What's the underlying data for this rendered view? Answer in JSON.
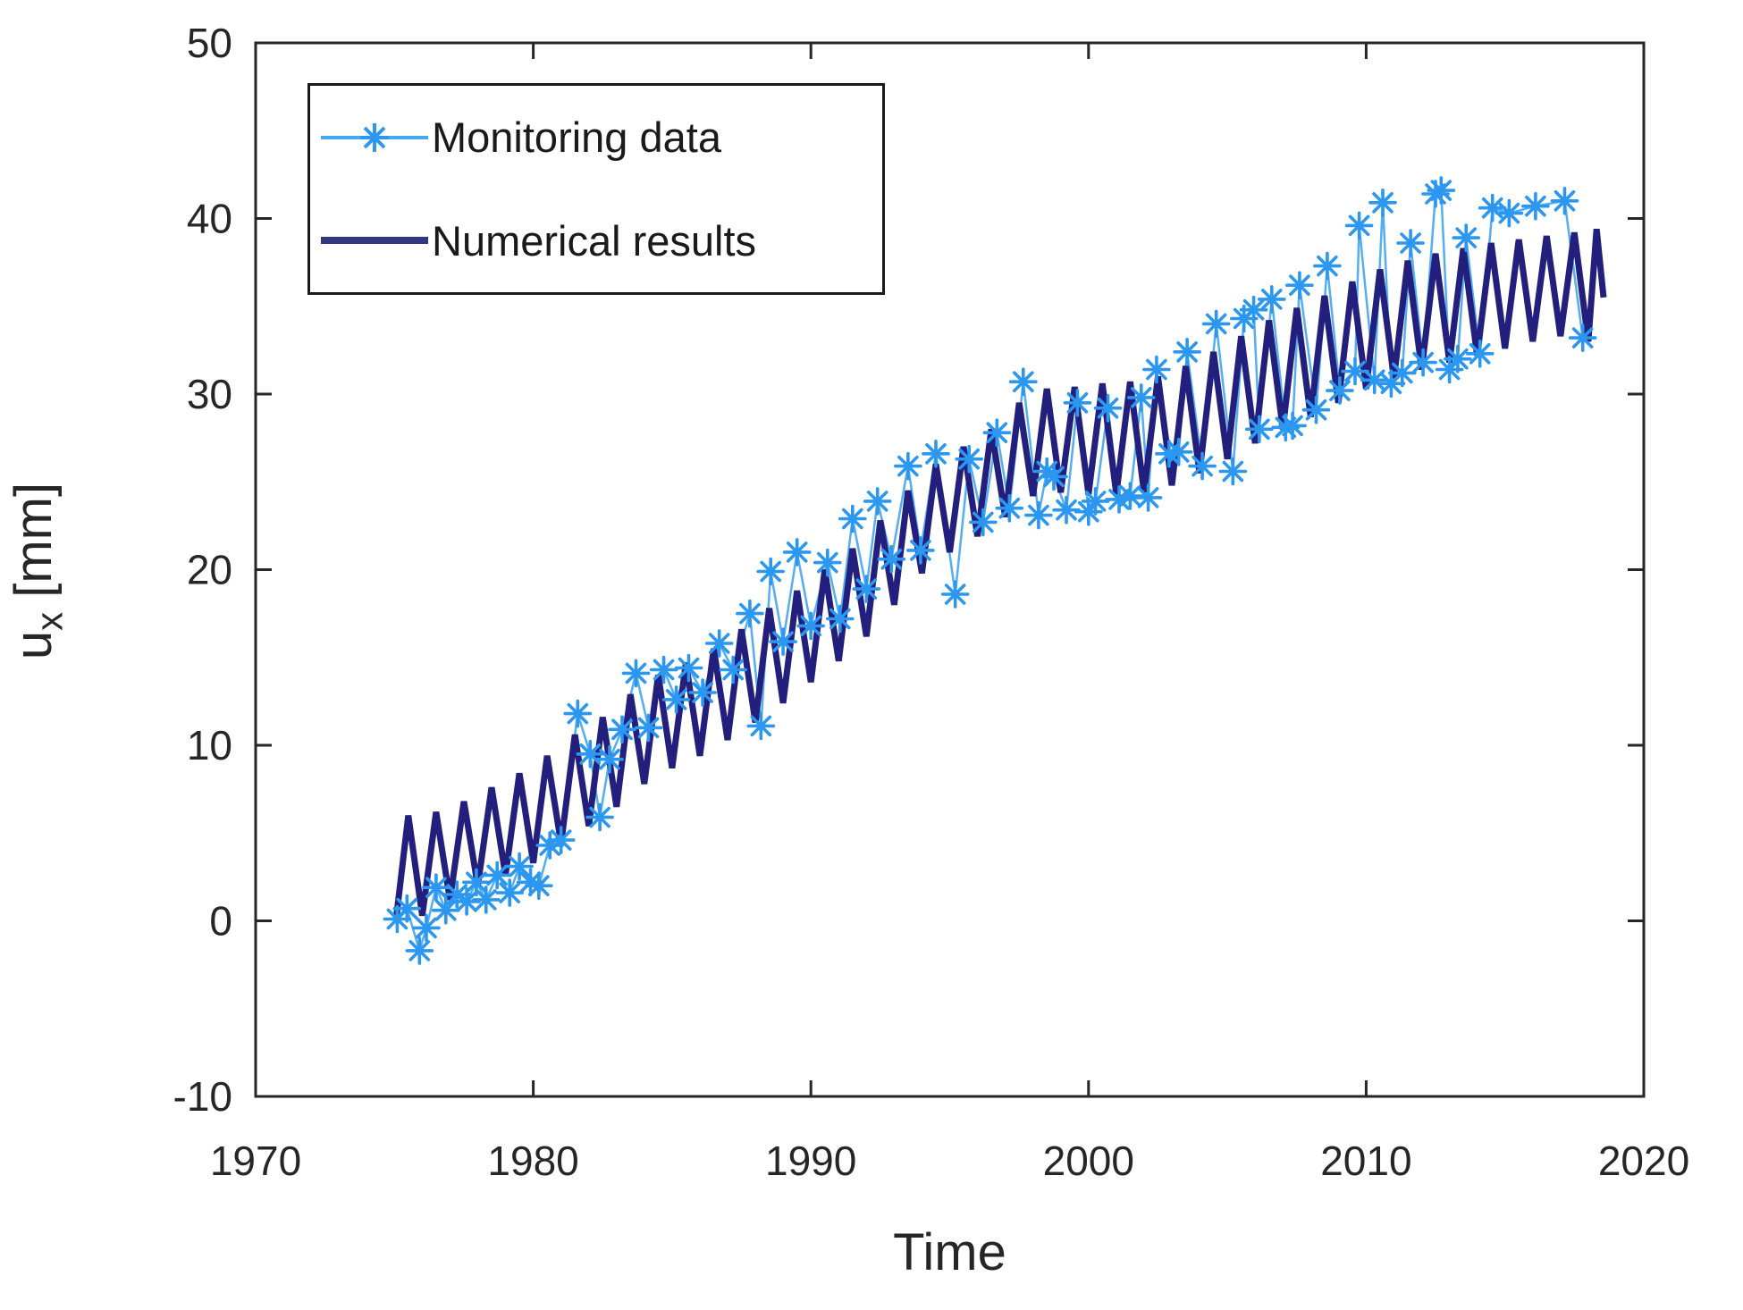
{
  "figure": {
    "background": "#ffffff",
    "axis_color": "#262626"
  },
  "axes": {
    "xlabel": "Time",
    "ylabel": {
      "base": "u",
      "sub": "x",
      "unit": " [mm]"
    },
    "x_ticks": [
      1970,
      1980,
      1990,
      2000,
      2010,
      2020
    ],
    "y_ticks": [
      -10,
      0,
      10,
      20,
      30,
      40,
      50
    ]
  },
  "legend": {
    "items": [
      {
        "label": "Monitoring data",
        "marker": "asterisk-line",
        "color": "#44a9f2"
      },
      {
        "label": "Numerical results",
        "marker": "line",
        "color": "#32357f"
      }
    ]
  },
  "chart_data": {
    "type": "line",
    "title": "",
    "xlabel": "Time",
    "ylabel": "u_x [mm]",
    "xlim": [
      1970,
      2020
    ],
    "ylim": [
      -10,
      50
    ],
    "grid": false,
    "legend_position": "top-left",
    "series": [
      {
        "name": "Monitoring data",
        "line_color": "#55aef2",
        "marker_color": "#2b97f0",
        "marker": "asterisk",
        "line_width": 2.5,
        "points": [
          [
            1975.1,
            0.1
          ],
          [
            1975.45,
            0.7
          ],
          [
            1975.9,
            -1.7
          ],
          [
            1976.15,
            -0.4
          ],
          [
            1976.5,
            1.9
          ],
          [
            1976.85,
            0.6
          ],
          [
            1977.25,
            1.5
          ],
          [
            1977.6,
            1.1
          ],
          [
            1977.95,
            2.2
          ],
          [
            1978.3,
            1.2
          ],
          [
            1978.7,
            2.6
          ],
          [
            1979.15,
            1.6
          ],
          [
            1979.5,
            3.1
          ],
          [
            1979.9,
            2.2
          ],
          [
            1980.2,
            2.0
          ],
          [
            1980.6,
            4.3
          ],
          [
            1981.0,
            4.6
          ],
          [
            1981.6,
            11.8
          ],
          [
            1982.05,
            9.5
          ],
          [
            1982.4,
            5.9
          ],
          [
            1982.75,
            9.2
          ],
          [
            1983.2,
            10.9
          ],
          [
            1983.7,
            14.1
          ],
          [
            1984.15,
            11.0
          ],
          [
            1984.7,
            14.3
          ],
          [
            1985.15,
            12.6
          ],
          [
            1985.6,
            14.4
          ],
          [
            1986.1,
            13.0
          ],
          [
            1986.7,
            15.8
          ],
          [
            1987.2,
            14.3
          ],
          [
            1987.8,
            17.5
          ],
          [
            1988.2,
            11.1
          ],
          [
            1988.55,
            19.9
          ],
          [
            1989.0,
            15.9
          ],
          [
            1989.5,
            21.0
          ],
          [
            1990.0,
            16.8
          ],
          [
            1990.6,
            20.4
          ],
          [
            1991.05,
            17.2
          ],
          [
            1991.5,
            22.9
          ],
          [
            1992.0,
            18.9
          ],
          [
            1992.4,
            23.9
          ],
          [
            1992.9,
            20.6
          ],
          [
            1993.5,
            25.9
          ],
          [
            1993.95,
            21.1
          ],
          [
            1994.5,
            26.6
          ],
          [
            1995.2,
            18.6
          ],
          [
            1995.7,
            26.3
          ],
          [
            1996.2,
            22.7
          ],
          [
            1996.7,
            27.8
          ],
          [
            1997.15,
            23.5
          ],
          [
            1997.65,
            30.7
          ],
          [
            1998.2,
            23.1
          ],
          [
            1998.5,
            25.6
          ],
          [
            1998.75,
            25.3
          ],
          [
            1999.2,
            23.4
          ],
          [
            1999.6,
            29.5
          ],
          [
            2000.0,
            23.3
          ],
          [
            2000.25,
            23.9
          ],
          [
            2000.7,
            29.2
          ],
          [
            2001.1,
            24.0
          ],
          [
            2001.5,
            24.2
          ],
          [
            2001.9,
            29.8
          ],
          [
            2002.15,
            24.1
          ],
          [
            2002.45,
            31.4
          ],
          [
            2002.9,
            26.6
          ],
          [
            2003.25,
            26.7
          ],
          [
            2003.55,
            32.4
          ],
          [
            2004.1,
            25.9
          ],
          [
            2004.6,
            34.0
          ],
          [
            2005.2,
            25.6
          ],
          [
            2005.6,
            34.3
          ],
          [
            2005.95,
            34.8
          ],
          [
            2006.15,
            28.0
          ],
          [
            2006.6,
            35.4
          ],
          [
            2007.1,
            28.1
          ],
          [
            2007.35,
            28.2
          ],
          [
            2007.6,
            36.2
          ],
          [
            2008.2,
            29.1
          ],
          [
            2008.6,
            37.3
          ],
          [
            2009.05,
            30.2
          ],
          [
            2009.6,
            31.3
          ],
          [
            2009.75,
            39.6
          ],
          [
            2010.3,
            30.8
          ],
          [
            2010.6,
            40.9
          ],
          [
            2010.9,
            30.6
          ],
          [
            2011.3,
            31.2
          ],
          [
            2011.6,
            38.6
          ],
          [
            2012.05,
            31.8
          ],
          [
            2012.5,
            41.4
          ],
          [
            2012.7,
            41.6
          ],
          [
            2013.0,
            31.4
          ],
          [
            2013.3,
            32.0
          ],
          [
            2013.6,
            38.9
          ],
          [
            2014.1,
            32.3
          ],
          [
            2014.55,
            40.6
          ],
          [
            2015.15,
            40.3
          ],
          [
            2016.1,
            40.7
          ],
          [
            2017.15,
            41.0
          ],
          [
            2017.8,
            33.2
          ]
        ]
      },
      {
        "name": "Numerical results",
        "line_color": "#221f7d",
        "marker": "none",
        "line_width": 7,
        "points": [
          [
            1975.05,
            0.0
          ],
          [
            1975.5,
            6.0
          ],
          [
            1976.0,
            0.3
          ],
          [
            1976.5,
            6.2
          ],
          [
            1977.0,
            1.2
          ],
          [
            1977.5,
            6.8
          ],
          [
            1978.0,
            2.0
          ],
          [
            1978.5,
            7.6
          ],
          [
            1979.0,
            2.6
          ],
          [
            1979.5,
            8.4
          ],
          [
            1980.0,
            3.3
          ],
          [
            1980.5,
            9.4
          ],
          [
            1981.0,
            4.4
          ],
          [
            1981.5,
            10.6
          ],
          [
            1982.0,
            5.4
          ],
          [
            1982.5,
            11.6
          ],
          [
            1983.0,
            6.5
          ],
          [
            1983.5,
            12.9
          ],
          [
            1984.0,
            7.8
          ],
          [
            1984.5,
            14.0
          ],
          [
            1985.0,
            8.7
          ],
          [
            1985.5,
            14.7
          ],
          [
            1986.0,
            9.4
          ],
          [
            1986.5,
            15.5
          ],
          [
            1987.0,
            10.3
          ],
          [
            1987.5,
            16.6
          ],
          [
            1988.0,
            11.3
          ],
          [
            1988.5,
            17.8
          ],
          [
            1989.0,
            12.4
          ],
          [
            1989.5,
            18.8
          ],
          [
            1990.0,
            13.6
          ],
          [
            1990.5,
            20.0
          ],
          [
            1991.0,
            14.8
          ],
          [
            1991.5,
            21.2
          ],
          [
            1992.0,
            16.2
          ],
          [
            1992.5,
            22.8
          ],
          [
            1993.0,
            18.0
          ],
          [
            1993.5,
            24.5
          ],
          [
            1994.0,
            19.8
          ],
          [
            1994.5,
            26.0
          ],
          [
            1995.0,
            21.0
          ],
          [
            1995.5,
            27.0
          ],
          [
            1996.0,
            21.9
          ],
          [
            1996.5,
            28.0
          ],
          [
            1997.0,
            23.0
          ],
          [
            1997.5,
            29.5
          ],
          [
            1998.0,
            24.2
          ],
          [
            1998.5,
            30.3
          ],
          [
            1999.0,
            24.4
          ],
          [
            1999.5,
            30.4
          ],
          [
            2000.0,
            24.3
          ],
          [
            2000.5,
            30.6
          ],
          [
            2001.0,
            24.3
          ],
          [
            2001.5,
            30.7
          ],
          [
            2002.0,
            24.4
          ],
          [
            2002.5,
            31.0
          ],
          [
            2003.0,
            24.8
          ],
          [
            2003.5,
            31.6
          ],
          [
            2004.0,
            25.5
          ],
          [
            2004.5,
            32.4
          ],
          [
            2005.0,
            26.3
          ],
          [
            2005.5,
            33.3
          ],
          [
            2006.0,
            27.2
          ],
          [
            2006.5,
            34.2
          ],
          [
            2007.0,
            28.0
          ],
          [
            2007.5,
            34.9
          ],
          [
            2008.0,
            28.7
          ],
          [
            2008.5,
            35.6
          ],
          [
            2009.0,
            29.5
          ],
          [
            2009.5,
            36.4
          ],
          [
            2010.0,
            30.3
          ],
          [
            2010.5,
            37.1
          ],
          [
            2011.0,
            30.9
          ],
          [
            2011.5,
            37.6
          ],
          [
            2012.0,
            31.4
          ],
          [
            2012.5,
            38.0
          ],
          [
            2013.0,
            31.8
          ],
          [
            2013.5,
            38.3
          ],
          [
            2014.0,
            32.2
          ],
          [
            2014.5,
            38.6
          ],
          [
            2015.0,
            32.6
          ],
          [
            2015.5,
            38.8
          ],
          [
            2016.0,
            33.0
          ],
          [
            2016.5,
            39.0
          ],
          [
            2017.0,
            33.3
          ],
          [
            2017.5,
            39.2
          ],
          [
            2018.0,
            33.0
          ],
          [
            2018.3,
            39.4
          ],
          [
            2018.55,
            35.5
          ]
        ]
      }
    ]
  }
}
